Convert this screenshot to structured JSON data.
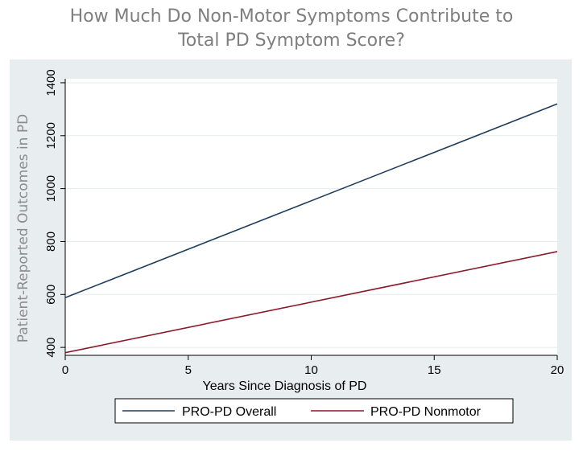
{
  "title_lines": [
    "How Much Do Non-Motor Symptoms Contribute to",
    "Total PD Symptom Score?"
  ],
  "chart_data": {
    "type": "line",
    "title": "How Much Do Non-Motor Symptoms Contribute to Total PD Symptom Score?",
    "xlabel": "Years Since Diagnosis of PD",
    "ylabel": "Patient-Reported Outcomes in PD",
    "xlim": [
      0,
      20
    ],
    "ylim": [
      370,
      1415
    ],
    "xticks": [
      0,
      5,
      10,
      15,
      20
    ],
    "yticks": [
      400,
      600,
      800,
      1000,
      1200,
      1400
    ],
    "grid": true,
    "legend_position": "bottom",
    "series": [
      {
        "name": "PRO-PD Overall",
        "color": "#1f3d5c",
        "x": [
          0,
          20
        ],
        "y": [
          588,
          1320
        ]
      },
      {
        "name": "PRO-PD Nonmotor",
        "color": "#8b1a2b",
        "x": [
          0,
          20
        ],
        "y": [
          380,
          762
        ]
      }
    ]
  }
}
